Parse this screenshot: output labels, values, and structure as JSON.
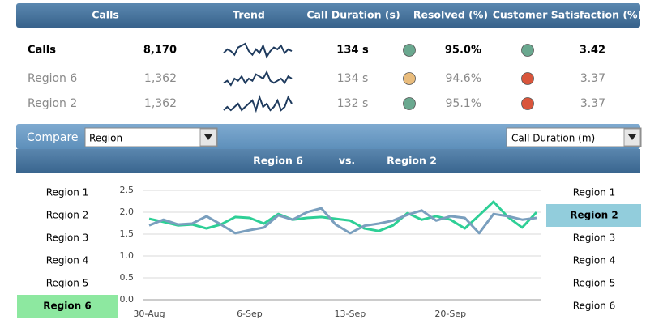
{
  "table": {
    "header": [
      "Calls",
      "Trend",
      "Call Duration (s)",
      "Resolved (%)",
      "Customer Satisfaction (%)"
    ],
    "rows": [
      {
        "name": "Calls",
        "calls": "8,170",
        "trend": [
          4,
          6,
          5,
          3,
          7,
          8,
          9,
          5,
          3,
          6,
          4,
          8,
          2,
          5,
          7,
          6,
          8,
          4,
          6,
          5
        ],
        "duration": "134 s",
        "resolved_color": "#6aa88f",
        "resolved": "95.0%",
        "satisfaction_color": "#6aa88f",
        "satisfaction": "3.42"
      },
      {
        "name": "Region 6",
        "calls": "1,362",
        "trend": [
          4,
          5,
          3,
          6,
          5,
          7,
          4,
          6,
          5,
          8,
          7,
          6,
          9,
          5,
          4,
          5,
          6,
          4,
          7,
          6
        ],
        "duration": "134 s",
        "resolved_color": "#e9bc7c",
        "resolved": "94.6%",
        "satisfaction_color": "#d9553b",
        "satisfaction": "3.37"
      },
      {
        "name": "Region 2",
        "calls": "1,362",
        "trend": [
          4,
          5,
          4,
          5,
          6,
          4,
          5,
          6,
          7,
          4,
          8,
          5,
          6,
          4,
          5,
          7,
          4,
          5,
          8,
          6
        ],
        "duration": "132 s",
        "resolved_color": "#6aa88f",
        "resolved": "95.1%",
        "satisfaction_color": "#d9553b",
        "satisfaction": "3.37"
      }
    ]
  },
  "compare": {
    "label": "Compare",
    "dimension": "Region",
    "metric": "Call Duration (m)",
    "vs": "vs."
  },
  "left_list": {
    "items": [
      "Region 1",
      "Region 2",
      "Region 3",
      "Region 4",
      "Region 5",
      "Region 6"
    ],
    "selected": 5,
    "highlight": "#8de8a0"
  },
  "right_list": {
    "items": [
      "Region 1",
      "Region 2",
      "Region 3",
      "Region 4",
      "Region 5",
      "Region 6"
    ],
    "selected": 1,
    "highlight": "#92cddc"
  },
  "chart_data": {
    "type": "line",
    "categories": [
      "30-Aug",
      null,
      null,
      null,
      null,
      null,
      null,
      "6-Sep",
      null,
      null,
      null,
      null,
      null,
      null,
      "13-Sep",
      null,
      null,
      null,
      null,
      null,
      null,
      "20-Sep",
      null,
      null,
      null,
      null,
      null,
      null
    ],
    "series": [
      {
        "name": "Region 6",
        "color": "#2ecf96",
        "values": [
          1.85,
          1.78,
          1.7,
          1.72,
          1.63,
          1.72,
          1.89,
          1.87,
          1.74,
          1.96,
          1.83,
          1.87,
          1.89,
          1.85,
          1.81,
          1.63,
          1.57,
          1.7,
          1.98,
          1.83,
          1.91,
          1.83,
          1.63,
          1.93,
          2.24,
          1.89,
          1.65,
          2.0
        ]
      },
      {
        "name": "Region 2",
        "color": "#7a9fbe",
        "values": [
          1.7,
          1.83,
          1.72,
          1.74,
          1.91,
          1.72,
          1.52,
          1.59,
          1.65,
          1.93,
          1.83,
          2.0,
          2.09,
          1.72,
          1.52,
          1.69,
          1.74,
          1.81,
          1.94,
          2.04,
          1.81,
          1.91,
          1.87,
          1.52,
          1.96,
          1.91,
          1.83,
          1.87
        ]
      }
    ],
    "ylim": [
      0,
      2.5
    ],
    "yticks": [
      {
        "value": 0,
        "label": "0.0"
      },
      0.5,
      {
        "value": 1,
        "label": "1.0"
      },
      1.5,
      {
        "value": 2,
        "label": "2.0"
      },
      2.5
    ],
    "grid": true
  }
}
